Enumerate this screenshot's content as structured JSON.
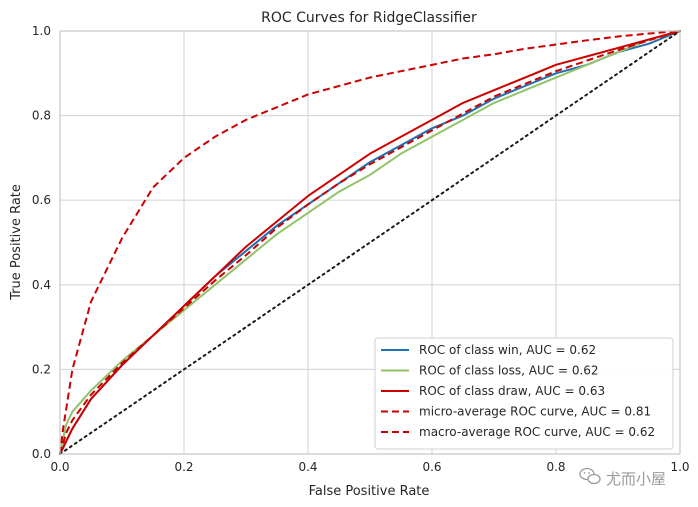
{
  "chart_data": {
    "type": "line",
    "title": "ROC Curves for RidgeClassifier",
    "xlabel": "False Positive Rate",
    "ylabel": "True Positive Rate",
    "xlim": [
      0.0,
      1.0
    ],
    "ylim": [
      0.0,
      1.0
    ],
    "xticks": [
      0.0,
      0.2,
      0.4,
      0.6,
      0.8,
      1.0
    ],
    "yticks": [
      0.0,
      0.2,
      0.4,
      0.6,
      0.8,
      1.0
    ],
    "xtick_labels": [
      "0.0",
      "0.2",
      "0.4",
      "0.6",
      "0.8",
      "1.0"
    ],
    "ytick_labels": [
      "0.0",
      "0.2",
      "0.4",
      "0.6",
      "0.8",
      "1.0"
    ],
    "grid": true,
    "legend_position": "lower-right",
    "series": [
      {
        "name": "ROC of class win, AUC = 0.62",
        "color": "#1f6fb2",
        "dash": "solid",
        "x": [
          0,
          0.01,
          0.02,
          0.05,
          0.1,
          0.15,
          0.2,
          0.25,
          0.3,
          0.35,
          0.4,
          0.45,
          0.5,
          0.55,
          0.6,
          0.65,
          0.7,
          0.75,
          0.8,
          0.85,
          0.9,
          0.95,
          1.0
        ],
        "y": [
          0,
          0.03,
          0.06,
          0.13,
          0.21,
          0.28,
          0.35,
          0.42,
          0.48,
          0.54,
          0.59,
          0.64,
          0.69,
          0.73,
          0.77,
          0.8,
          0.84,
          0.87,
          0.9,
          0.92,
          0.95,
          0.97,
          1.0
        ]
      },
      {
        "name": "ROC of class loss, AUC = 0.62",
        "color": "#92c26a",
        "dash": "solid",
        "x": [
          0,
          0.01,
          0.02,
          0.05,
          0.1,
          0.15,
          0.2,
          0.25,
          0.3,
          0.35,
          0.4,
          0.45,
          0.5,
          0.55,
          0.6,
          0.65,
          0.7,
          0.75,
          0.8,
          0.85,
          0.9,
          0.95,
          1.0
        ],
        "y": [
          0,
          0.07,
          0.1,
          0.15,
          0.22,
          0.28,
          0.34,
          0.4,
          0.46,
          0.52,
          0.57,
          0.62,
          0.66,
          0.71,
          0.75,
          0.79,
          0.83,
          0.86,
          0.89,
          0.92,
          0.95,
          0.98,
          1.0
        ]
      },
      {
        "name": "ROC of class draw, AUC = 0.63",
        "color": "#cc0000",
        "dash": "solid",
        "x": [
          0,
          0.01,
          0.02,
          0.05,
          0.1,
          0.15,
          0.2,
          0.25,
          0.3,
          0.35,
          0.4,
          0.45,
          0.5,
          0.55,
          0.6,
          0.65,
          0.7,
          0.75,
          0.8,
          0.85,
          0.9,
          0.95,
          1.0
        ],
        "y": [
          0,
          0.03,
          0.06,
          0.13,
          0.21,
          0.28,
          0.35,
          0.42,
          0.49,
          0.55,
          0.61,
          0.66,
          0.71,
          0.75,
          0.79,
          0.83,
          0.86,
          0.89,
          0.92,
          0.94,
          0.96,
          0.98,
          1.0
        ]
      },
      {
        "name": "micro-average ROC curve, AUC = 0.81",
        "color": "#cc0000",
        "dash": "dashed",
        "x": [
          0,
          0.005,
          0.02,
          0.05,
          0.1,
          0.15,
          0.2,
          0.25,
          0.3,
          0.35,
          0.4,
          0.45,
          0.5,
          0.55,
          0.6,
          0.65,
          0.7,
          0.75,
          0.8,
          0.85,
          0.9,
          0.95,
          1.0
        ],
        "y": [
          0,
          0.06,
          0.2,
          0.36,
          0.51,
          0.63,
          0.7,
          0.75,
          0.79,
          0.82,
          0.85,
          0.87,
          0.89,
          0.905,
          0.92,
          0.935,
          0.945,
          0.958,
          0.968,
          0.978,
          0.987,
          0.994,
          1.0
        ]
      },
      {
        "name": "macro-average ROC curve, AUC = 0.62",
        "color": "#cc0000",
        "dash": "dashed",
        "x": [
          0,
          0.01,
          0.02,
          0.05,
          0.1,
          0.15,
          0.2,
          0.25,
          0.3,
          0.35,
          0.4,
          0.45,
          0.5,
          0.55,
          0.6,
          0.65,
          0.7,
          0.75,
          0.8,
          0.85,
          0.9,
          0.95,
          1.0
        ],
        "y": [
          0,
          0.05,
          0.08,
          0.14,
          0.215,
          0.28,
          0.345,
          0.41,
          0.47,
          0.535,
          0.59,
          0.64,
          0.685,
          0.725,
          0.765,
          0.805,
          0.845,
          0.875,
          0.905,
          0.93,
          0.955,
          0.978,
          1.0
        ]
      }
    ],
    "chance_line": {
      "color": "#1a1a1a",
      "dash": "dotted",
      "x": [
        0,
        1
      ],
      "y": [
        0,
        1
      ]
    }
  },
  "watermark": {
    "text": "尤而小屋",
    "icon": "wechat-bubble-icon"
  },
  "style": {
    "grid_color": "#d9d9d9",
    "spine_color": "#cccccc",
    "legend_border": "#d0d0d0"
  }
}
